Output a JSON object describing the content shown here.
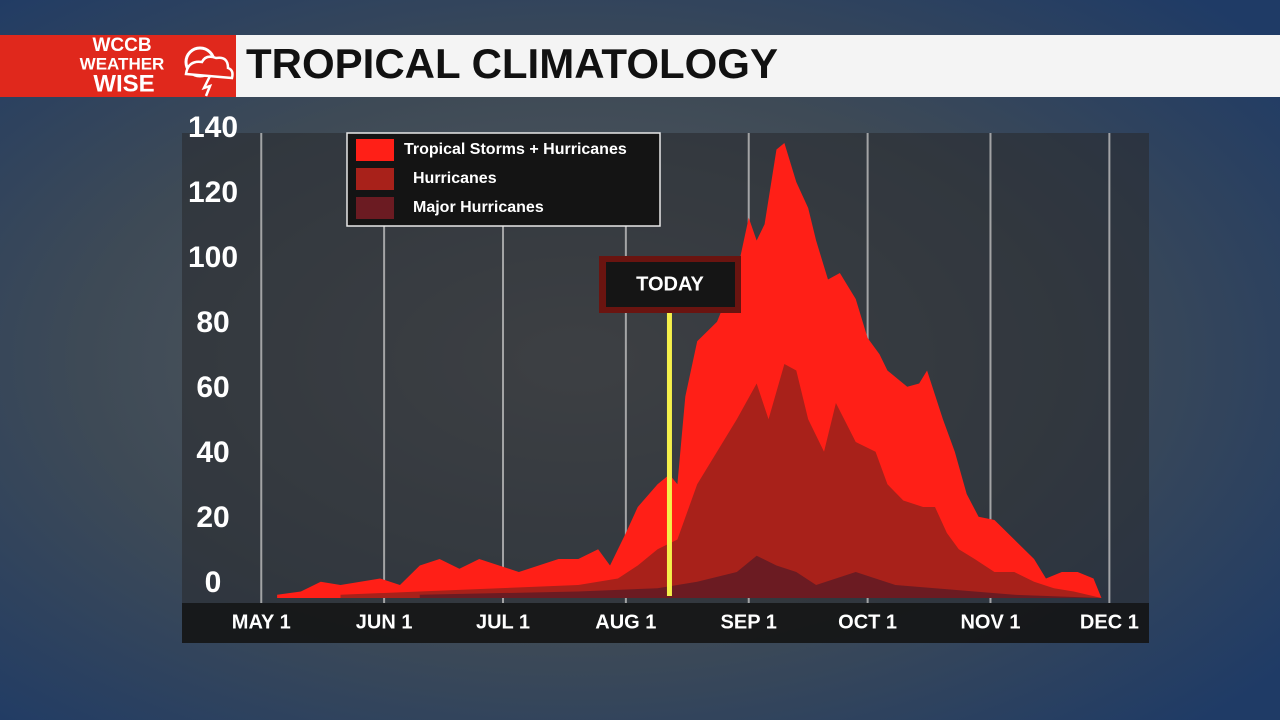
{
  "logo": {
    "lines": [
      "WCCB",
      "WEATHER",
      "WISE"
    ]
  },
  "chart_data": {
    "type": "area",
    "title": "TROPICAL CLIMATOLOGY",
    "xlim": [
      -20,
      224
    ],
    "ylim": [
      0,
      140
    ],
    "yticks": [
      0,
      20,
      40,
      60,
      80,
      100,
      120,
      140
    ],
    "xticks": [
      {
        "value": 0,
        "label": "MAY 1"
      },
      {
        "value": 31,
        "label": "JUN 1"
      },
      {
        "value": 61,
        "label": "JUL 1"
      },
      {
        "value": 92,
        "label": "AUG 1"
      },
      {
        "value": 123,
        "label": "SEP 1"
      },
      {
        "value": 153,
        "label": "OCT 1"
      },
      {
        "value": 184,
        "label": "NOV 1"
      },
      {
        "value": 214,
        "label": "DEC 1"
      }
    ],
    "grid": true,
    "legend": "top-left",
    "today": {
      "label": "TODAY",
      "x": 103
    },
    "series": [
      {
        "name": "Tropical Storms + Hurricanes",
        "color": "#ff1f17",
        "x": [
          4,
          10,
          15,
          20,
          25,
          30,
          35,
          40,
          45,
          50,
          55,
          60,
          65,
          70,
          75,
          80,
          85,
          88,
          92,
          95,
          100,
          103,
          105,
          107,
          110,
          115,
          120,
          123,
          125,
          127,
          130,
          132,
          135,
          138,
          140,
          143,
          146,
          150,
          153,
          156,
          158,
          160,
          163,
          166,
          168,
          172,
          175,
          178,
          181,
          185,
          190,
          195,
          198,
          202,
          206,
          210,
          212
        ],
        "values": [
          1,
          2,
          5,
          4,
          5,
          6,
          4,
          10,
          12,
          9,
          12,
          10,
          8,
          10,
          12,
          12,
          15,
          10,
          20,
          28,
          35,
          38,
          35,
          62,
          79,
          85,
          100,
          117,
          110,
          115,
          138,
          140,
          128,
          120,
          110,
          98,
          100,
          92,
          80,
          75,
          70,
          68,
          65,
          66,
          70,
          55,
          45,
          32,
          25,
          24,
          18,
          12,
          6,
          8,
          8,
          6,
          0
        ]
      },
      {
        "name": "Hurricanes",
        "color": "#a8211a",
        "x": [
          20,
          40,
          60,
          80,
          90,
          95,
          100,
          105,
          110,
          115,
          120,
          125,
          128,
          132,
          135,
          138,
          142,
          145,
          150,
          155,
          158,
          162,
          167,
          170,
          173,
          176,
          180,
          185,
          190,
          195,
          200,
          205,
          212
        ],
        "values": [
          1,
          2,
          3,
          4,
          6,
          10,
          15,
          18,
          35,
          45,
          55,
          66,
          55,
          72,
          70,
          55,
          45,
          60,
          48,
          45,
          35,
          30,
          28,
          28,
          20,
          15,
          12,
          8,
          8,
          5,
          3,
          2,
          0
        ]
      },
      {
        "name": "Major Hurricanes",
        "color": "#6b1b22",
        "x": [
          40,
          80,
          100,
          110,
          120,
          125,
          130,
          135,
          140,
          145,
          150,
          155,
          160,
          170,
          180,
          190,
          212
        ],
        "values": [
          1,
          2,
          3,
          5,
          8,
          13,
          10,
          8,
          4,
          6,
          8,
          6,
          4,
          3,
          2,
          1,
          0
        ]
      }
    ]
  }
}
